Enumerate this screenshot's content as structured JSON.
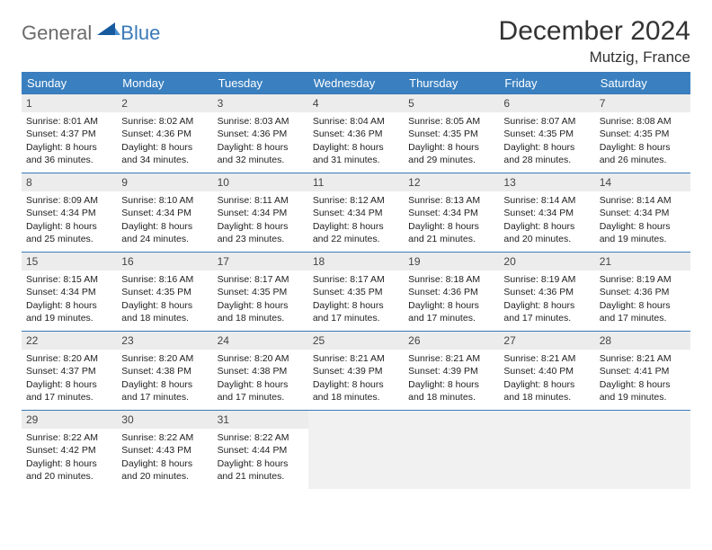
{
  "logo": {
    "text_a": "General",
    "text_b": "Blue"
  },
  "title": "December 2024",
  "location": "Mutzig, France",
  "header_bg": "#3a80c0",
  "border_color": "#3a7ab8",
  "daynum_bg": "#ececec",
  "blank_bg": "#f1f1f1",
  "day_names": [
    "Sunday",
    "Monday",
    "Tuesday",
    "Wednesday",
    "Thursday",
    "Friday",
    "Saturday"
  ],
  "days": [
    {
      "n": "1",
      "sr": "8:01 AM",
      "ss": "4:37 PM",
      "dl": "8 hours and 36 minutes."
    },
    {
      "n": "2",
      "sr": "8:02 AM",
      "ss": "4:36 PM",
      "dl": "8 hours and 34 minutes."
    },
    {
      "n": "3",
      "sr": "8:03 AM",
      "ss": "4:36 PM",
      "dl": "8 hours and 32 minutes."
    },
    {
      "n": "4",
      "sr": "8:04 AM",
      "ss": "4:36 PM",
      "dl": "8 hours and 31 minutes."
    },
    {
      "n": "5",
      "sr": "8:05 AM",
      "ss": "4:35 PM",
      "dl": "8 hours and 29 minutes."
    },
    {
      "n": "6",
      "sr": "8:07 AM",
      "ss": "4:35 PM",
      "dl": "8 hours and 28 minutes."
    },
    {
      "n": "7",
      "sr": "8:08 AM",
      "ss": "4:35 PM",
      "dl": "8 hours and 26 minutes."
    },
    {
      "n": "8",
      "sr": "8:09 AM",
      "ss": "4:34 PM",
      "dl": "8 hours and 25 minutes."
    },
    {
      "n": "9",
      "sr": "8:10 AM",
      "ss": "4:34 PM",
      "dl": "8 hours and 24 minutes."
    },
    {
      "n": "10",
      "sr": "8:11 AM",
      "ss": "4:34 PM",
      "dl": "8 hours and 23 minutes."
    },
    {
      "n": "11",
      "sr": "8:12 AM",
      "ss": "4:34 PM",
      "dl": "8 hours and 22 minutes."
    },
    {
      "n": "12",
      "sr": "8:13 AM",
      "ss": "4:34 PM",
      "dl": "8 hours and 21 minutes."
    },
    {
      "n": "13",
      "sr": "8:14 AM",
      "ss": "4:34 PM",
      "dl": "8 hours and 20 minutes."
    },
    {
      "n": "14",
      "sr": "8:14 AM",
      "ss": "4:34 PM",
      "dl": "8 hours and 19 minutes."
    },
    {
      "n": "15",
      "sr": "8:15 AM",
      "ss": "4:34 PM",
      "dl": "8 hours and 19 minutes."
    },
    {
      "n": "16",
      "sr": "8:16 AM",
      "ss": "4:35 PM",
      "dl": "8 hours and 18 minutes."
    },
    {
      "n": "17",
      "sr": "8:17 AM",
      "ss": "4:35 PM",
      "dl": "8 hours and 18 minutes."
    },
    {
      "n": "18",
      "sr": "8:17 AM",
      "ss": "4:35 PM",
      "dl": "8 hours and 17 minutes."
    },
    {
      "n": "19",
      "sr": "8:18 AM",
      "ss": "4:36 PM",
      "dl": "8 hours and 17 minutes."
    },
    {
      "n": "20",
      "sr": "8:19 AM",
      "ss": "4:36 PM",
      "dl": "8 hours and 17 minutes."
    },
    {
      "n": "21",
      "sr": "8:19 AM",
      "ss": "4:36 PM",
      "dl": "8 hours and 17 minutes."
    },
    {
      "n": "22",
      "sr": "8:20 AM",
      "ss": "4:37 PM",
      "dl": "8 hours and 17 minutes."
    },
    {
      "n": "23",
      "sr": "8:20 AM",
      "ss": "4:38 PM",
      "dl": "8 hours and 17 minutes."
    },
    {
      "n": "24",
      "sr": "8:20 AM",
      "ss": "4:38 PM",
      "dl": "8 hours and 17 minutes."
    },
    {
      "n": "25",
      "sr": "8:21 AM",
      "ss": "4:39 PM",
      "dl": "8 hours and 18 minutes."
    },
    {
      "n": "26",
      "sr": "8:21 AM",
      "ss": "4:39 PM",
      "dl": "8 hours and 18 minutes."
    },
    {
      "n": "27",
      "sr": "8:21 AM",
      "ss": "4:40 PM",
      "dl": "8 hours and 18 minutes."
    },
    {
      "n": "28",
      "sr": "8:21 AM",
      "ss": "4:41 PM",
      "dl": "8 hours and 19 minutes."
    },
    {
      "n": "29",
      "sr": "8:22 AM",
      "ss": "4:42 PM",
      "dl": "8 hours and 20 minutes."
    },
    {
      "n": "30",
      "sr": "8:22 AM",
      "ss": "4:43 PM",
      "dl": "8 hours and 20 minutes."
    },
    {
      "n": "31",
      "sr": "8:22 AM",
      "ss": "4:44 PM",
      "dl": "8 hours and 21 minutes."
    }
  ],
  "labels": {
    "sunrise": "Sunrise: ",
    "sunset": "Sunset: ",
    "daylight": "Daylight: "
  },
  "trailing_blanks": 4
}
